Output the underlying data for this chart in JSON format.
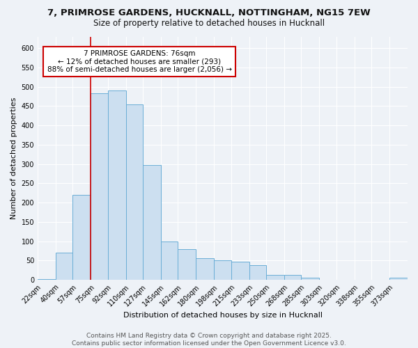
{
  "title_line1": "7, PRIMROSE GARDENS, HUCKNALL, NOTTINGHAM, NG15 7EW",
  "title_line2": "Size of property relative to detached houses in Hucknall",
  "xlabel": "Distribution of detached houses by size in Hucknall",
  "ylabel": "Number of detached properties",
  "bin_edges": [
    22,
    40,
    57,
    75,
    92,
    110,
    127,
    145,
    162,
    180,
    198,
    215,
    233,
    250,
    268,
    285,
    303,
    320,
    338,
    355,
    373,
    391
  ],
  "bar_heights": [
    3,
    70,
    220,
    483,
    490,
    455,
    298,
    100,
    80,
    57,
    50,
    47,
    38,
    13,
    13,
    5,
    0,
    0,
    0,
    0,
    5
  ],
  "bar_color": "#ccdff0",
  "bar_edgecolor": "#6aaed6",
  "property_line_x": 75,
  "red_line_color": "#cc0000",
  "annotation_text": "7 PRIMROSE GARDENS: 76sqm\n← 12% of detached houses are smaller (293)\n88% of semi-detached houses are larger (2,056) →",
  "annotation_box_edgecolor": "#cc0000",
  "annotation_box_facecolor": "#ffffff",
  "ylim": [
    0,
    630
  ],
  "yticks": [
    0,
    50,
    100,
    150,
    200,
    250,
    300,
    350,
    400,
    450,
    500,
    550,
    600
  ],
  "tick_labels": [
    "22sqm",
    "40sqm",
    "57sqm",
    "75sqm",
    "92sqm",
    "110sqm",
    "127sqm",
    "145sqm",
    "162sqm",
    "180sqm",
    "198sqm",
    "215sqm",
    "233sqm",
    "250sqm",
    "268sqm",
    "285sqm",
    "303sqm",
    "320sqm",
    "338sqm",
    "355sqm",
    "373sqm"
  ],
  "footer_text": "Contains HM Land Registry data © Crown copyright and database right 2025.\nContains public sector information licensed under the Open Government Licence v3.0.",
  "bg_color": "#eef2f7",
  "grid_color": "#ffffff",
  "title_fontsize": 9.5,
  "subtitle_fontsize": 8.5,
  "axis_label_fontsize": 8,
  "tick_fontsize": 7,
  "annotation_fontsize": 7.5,
  "footer_fontsize": 6.5
}
